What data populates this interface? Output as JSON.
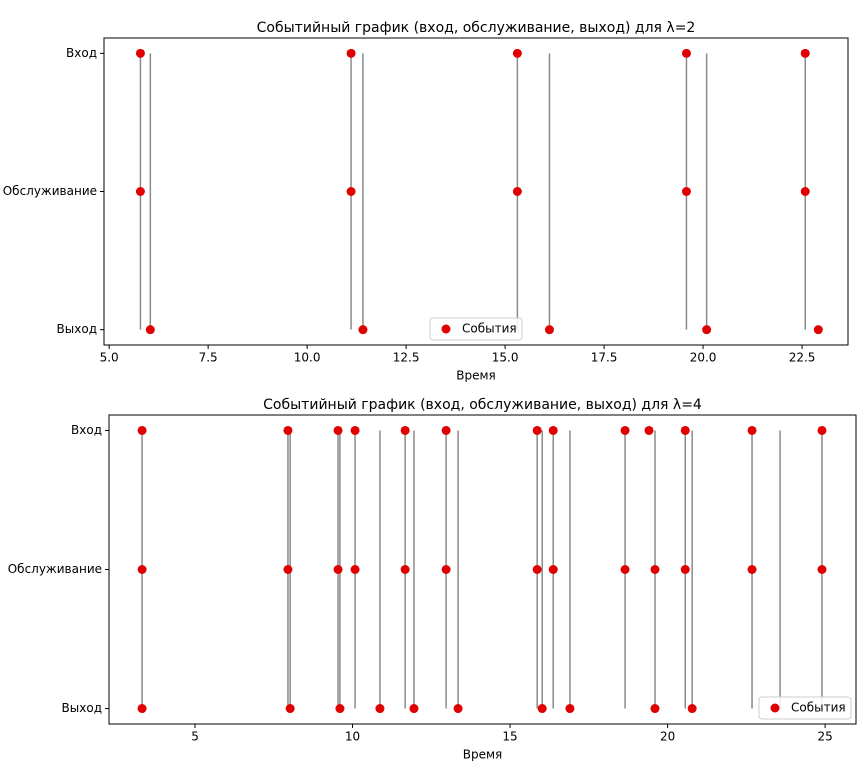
{
  "chart_data": [
    {
      "type": "event-scatter",
      "title": "Событийный график (вход, обслуживание, выход) для λ=2",
      "xlabel": "Время",
      "xlim": [
        4.87,
        23.66
      ],
      "xticks": [
        {
          "value": 5,
          "label": "5.0"
        },
        {
          "value": 7.5,
          "label": "7.5"
        },
        {
          "value": 10,
          "label": "10.0"
        },
        {
          "value": 12.5,
          "label": "12.5"
        },
        {
          "value": 15,
          "label": "15.0"
        },
        {
          "value": 17.5,
          "label": "17.5"
        },
        {
          "value": 20,
          "label": "20.0"
        },
        {
          "value": 22.5,
          "label": "22.5"
        }
      ],
      "categories": [
        "Вход",
        "Обслуживание",
        "Выход"
      ],
      "series": [
        {
          "name": "События",
          "color": "#e00000",
          "values": [
            [
              5.79,
              11.11,
              15.31,
              19.58,
              22.58
            ],
            [
              5.79,
              11.11,
              15.31,
              19.58,
              22.58
            ],
            [
              6.04,
              11.41,
              16.12,
              20.09,
              22.91
            ]
          ]
        }
      ],
      "vlines": [
        5.79,
        6.04,
        11.11,
        11.41,
        15.31,
        16.12,
        19.58,
        20.09,
        22.58
      ],
      "line_color": "#777777",
      "legend": "lower center"
    },
    {
      "type": "event-scatter",
      "title": "Событийный график (вход, обслуживание, выход) для λ=4",
      "xlabel": "Время",
      "xlim": [
        2.27,
        25.98
      ],
      "xticks": [
        5,
        10,
        15,
        20,
        25
      ],
      "categories": [
        "Вход",
        "Обслуживание",
        "Выход"
      ],
      "series": [
        {
          "name": "События",
          "color": "#e00000",
          "values": [
            [
              3.32,
              7.95,
              9.54,
              10.08,
              11.67,
              12.97,
              15.86,
              16.37,
              18.65,
              19.41,
              20.56,
              22.68,
              24.9
            ],
            [
              3.32,
              7.95,
              9.54,
              10.08,
              11.67,
              12.97,
              15.86,
              16.37,
              18.65,
              19.6,
              20.56,
              22.68,
              24.9
            ],
            [
              3.32,
              8.02,
              9.6,
              10.87,
              11.95,
              13.35,
              16.02,
              16.9,
              19.6,
              20.78
            ]
          ]
        }
      ],
      "vlines": [
        3.32,
        7.95,
        8.02,
        9.54,
        9.6,
        10.08,
        10.87,
        11.67,
        11.95,
        12.97,
        13.35,
        15.86,
        16.02,
        16.37,
        16.9,
        18.65,
        19.6,
        20.56,
        20.78,
        22.68,
        23.57,
        24.9
      ],
      "line_color": "#777777",
      "legend": "lower right"
    }
  ]
}
